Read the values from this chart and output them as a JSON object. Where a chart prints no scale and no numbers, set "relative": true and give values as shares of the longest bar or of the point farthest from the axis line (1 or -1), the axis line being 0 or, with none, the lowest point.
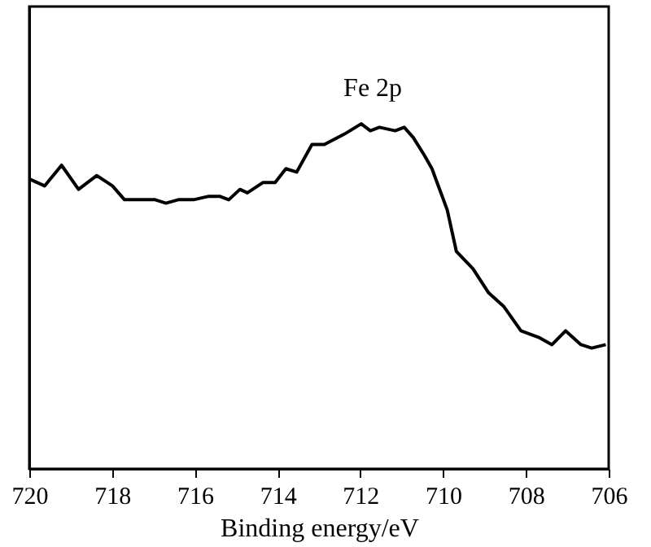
{
  "chart_data": {
    "type": "line",
    "relative": true,
    "xlabel": "Binding energy/eV",
    "xlim": [
      720,
      706
    ],
    "xticks": [
      720,
      718,
      716,
      714,
      712,
      710,
      708,
      706
    ],
    "tick_labels": "x",
    "grid": false,
    "marker": "none",
    "line_style": "solid",
    "annotations": [
      {
        "text": "Fe 2p",
        "x": 711.7,
        "y": 1.0
      }
    ],
    "series": [
      {
        "color": "#000000",
        "x": [
          720.0,
          719.63,
          719.22,
          718.81,
          718.37,
          717.99,
          717.7,
          717.33,
          716.96,
          716.7,
          716.4,
          716.03,
          715.66,
          715.4,
          715.18,
          714.91,
          714.73,
          714.35,
          714.06,
          713.8,
          713.54,
          713.17,
          712.87,
          712.39,
          711.98,
          711.76,
          711.54,
          711.16,
          710.94,
          710.72,
          710.46,
          710.27,
          709.9,
          709.68,
          709.28,
          708.9,
          708.53,
          708.12,
          707.67,
          707.37,
          707.04,
          706.67,
          706.41,
          706.07
        ],
        "values": [
          0.84,
          0.82,
          0.88,
          0.81,
          0.85,
          0.82,
          0.78,
          0.78,
          0.78,
          0.77,
          0.78,
          0.78,
          0.79,
          0.79,
          0.78,
          0.81,
          0.8,
          0.83,
          0.83,
          0.87,
          0.86,
          0.94,
          0.94,
          0.97,
          1.0,
          0.98,
          0.99,
          0.98,
          0.99,
          0.96,
          0.91,
          0.87,
          0.75,
          0.63,
          0.58,
          0.51,
          0.47,
          0.4,
          0.38,
          0.36,
          0.4,
          0.36,
          0.35,
          0.36
        ]
      }
    ]
  }
}
